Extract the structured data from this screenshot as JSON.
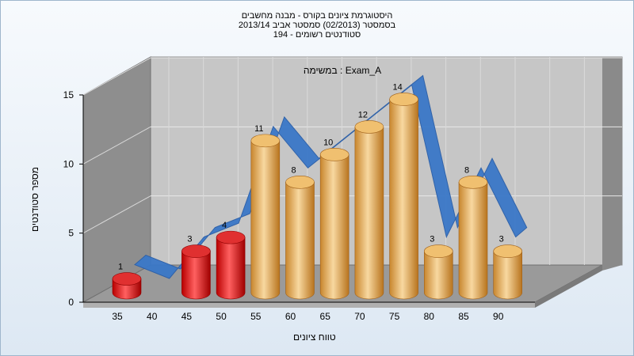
{
  "header": {
    "line1": "היסטוגרמת ציונים בקורס - מבנה מחשבים",
    "line2": "בסמסטר  (02/2013)  סמסטר אביב 2013/14",
    "line3": "סטודנטים רשומים - 194"
  },
  "chart_data": {
    "type": "bar",
    "title": "במשימה : Exam_A",
    "xlabel": "טווח ציונים",
    "ylabel": "מספר סטודנטים",
    "categories": [
      "35",
      "40",
      "45",
      "50",
      "55",
      "60",
      "65",
      "70",
      "75",
      "80",
      "85",
      "90"
    ],
    "values": [
      1,
      0,
      3,
      4,
      11,
      8,
      10,
      12,
      14,
      3,
      8,
      3
    ],
    "yticks": [
      "0",
      "5",
      "10",
      "15"
    ],
    "ylim": [
      0,
      15
    ],
    "grid": true,
    "colors": {
      "below_threshold": "#e02020",
      "above_threshold": "#e0a050",
      "trend": "#3a78c8",
      "wall": "#c4c4c4",
      "side_wall": "#8c8c8c"
    },
    "low_cutoff_category_index": 3,
    "trend_line": true
  }
}
